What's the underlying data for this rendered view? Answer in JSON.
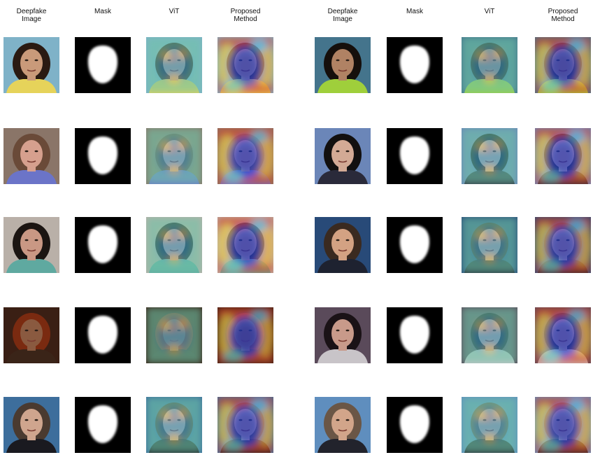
{
  "figure": {
    "column_headers": [
      {
        "lines": [
          "Deepfake",
          "Image"
        ]
      },
      {
        "lines": [
          "Mask"
        ]
      },
      {
        "lines": [
          "ViT"
        ]
      },
      {
        "lines": [
          "Proposed",
          "Method"
        ]
      },
      {
        "lines": [
          "Deepfake",
          "Image"
        ]
      },
      {
        "lines": [
          "Mask"
        ]
      },
      {
        "lines": [
          "ViT"
        ]
      },
      {
        "lines": [
          "Proposed",
          "Method"
        ]
      }
    ],
    "columns": [
      {
        "kind": "deepfake-image"
      },
      {
        "kind": "mask"
      },
      {
        "kind": "vit-heatmap"
      },
      {
        "kind": "proposed-heatmap"
      },
      {
        "kind": "deepfake-image"
      },
      {
        "kind": "mask"
      },
      {
        "kind": "vit-heatmap"
      },
      {
        "kind": "proposed-heatmap"
      }
    ],
    "rows": [
      [
        {
          "bg": "#7fb2c8",
          "hair": "#2a1a12",
          "skin": "#c99a7a",
          "shirt": "#e6d35a"
        },
        {
          "bg": "#44748c",
          "hair": "#150f0c",
          "skin": "#b08264",
          "shirt": "#9fcf3b"
        }
      ],
      [
        {
          "bg": "#8a7568",
          "hair": "#6a4a38",
          "skin": "#d6a08e",
          "shirt": "#6b74c8"
        },
        {
          "bg": "#6b86b8",
          "hair": "#12100f",
          "skin": "#d3aa95",
          "shirt": "#2a2a3a"
        }
      ],
      [
        {
          "bg": "#b9b0a8",
          "hair": "#1b1512",
          "skin": "#c99884",
          "shirt": "#5fa9a0"
        },
        {
          "bg": "#284a78",
          "hair": "#3a2a20",
          "skin": "#d3a283",
          "shirt": "#1e2230"
        }
      ],
      [
        {
          "bg": "#3a1f14",
          "hair": "#7a2a10",
          "skin": "#8a5a40",
          "shirt": "#3a2418"
        },
        {
          "bg": "#5a4a5a",
          "hair": "#1a1216",
          "skin": "#c89a8a",
          "shirt": "#c8c4c8"
        }
      ],
      [
        {
          "bg": "#3d6e9c",
          "hair": "#4a3a30",
          "skin": "#cfa58e",
          "shirt": "#1a1a20"
        },
        {
          "bg": "#5f8ebe",
          "hair": "#6a5646",
          "skin": "#d2a58a",
          "shirt": "#22232c"
        }
      ]
    ]
  }
}
